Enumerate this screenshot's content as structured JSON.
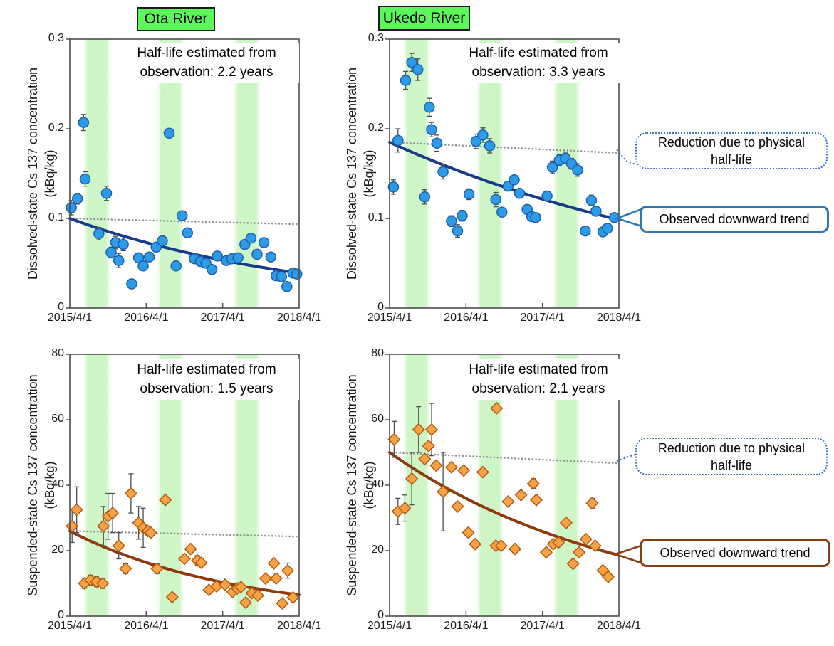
{
  "figure": {
    "description": "Cs 137 concentration trends in two rivers, dissolved and suspended states",
    "background": "#ffffff"
  },
  "callouts": [
    {
      "style": "dotted-blue",
      "line1": "Reduction due to physical",
      "line2": "half-life"
    },
    {
      "style": "solid-blue",
      "line1": "Observed downward trend"
    },
    {
      "style": "dotted-blue",
      "line1": "Reduction due to physical",
      "line2": "half-life"
    },
    {
      "style": "solid-brown",
      "line1": "Observed downward trend"
    }
  ],
  "chart_data": [
    {
      "id": "ota-dissolved",
      "type": "scatter",
      "river": "Ota River",
      "marker": "circle",
      "annotation": [
        "Half-life estimated from",
        "observation: 2.2 years"
      ],
      "half_life_years": 2.2,
      "y_axis": {
        "label": [
          "Dissolved-state Cs 137 concentration",
          "(kBq/kg)"
        ],
        "min": 0,
        "max": 0.3,
        "ticks": [
          "0",
          "0.1",
          "0.2",
          "0.3"
        ]
      },
      "x_axis": {
        "ticks": [
          "2015/4/1",
          "2016/4/1",
          "2017/4/1",
          "2018/4/1"
        ],
        "span_years": 3
      },
      "summer_bands_years": [
        [
          0.18,
          0.53
        ],
        [
          1.14,
          1.49
        ],
        [
          2.14,
          2.49
        ]
      ],
      "observed_trend": {
        "start": 0.1,
        "end": 0.039
      },
      "physical_halflife_line": {
        "start": 0.1,
        "end": 0.0935
      },
      "colors": {
        "marker_fill": "#2e9be8",
        "marker_stroke": "#1b5faa",
        "trend": "#183a8c",
        "physical": "#8f8f8f"
      },
      "points": [
        [
          0.02,
          0.112,
          0.008
        ],
        [
          0.1,
          0.122,
          0.006
        ],
        [
          0.18,
          0.207,
          0.009
        ],
        [
          0.2,
          0.144,
          0.008
        ],
        [
          0.38,
          0.083,
          0.007
        ],
        [
          0.48,
          0.128,
          0.008
        ],
        [
          0.54,
          0.062,
          0.006
        ],
        [
          0.6,
          0.073,
          0.007
        ],
        [
          0.64,
          0.053,
          0.008
        ],
        [
          0.7,
          0.071,
          0.007
        ],
        [
          0.81,
          0.027,
          0
        ],
        [
          0.9,
          0.056,
          0.004
        ],
        [
          0.96,
          0.047,
          0.005
        ],
        [
          1.04,
          0.057,
          0
        ],
        [
          1.13,
          0.068,
          0
        ],
        [
          1.21,
          0.075,
          0
        ],
        [
          1.3,
          0.195,
          0
        ],
        [
          1.39,
          0.047,
          0
        ],
        [
          1.47,
          0.103,
          0
        ],
        [
          1.54,
          0.084,
          0
        ],
        [
          1.63,
          0.055,
          0
        ],
        [
          1.71,
          0.052,
          0
        ],
        [
          1.78,
          0.05,
          0
        ],
        [
          1.86,
          0.043,
          0
        ],
        [
          1.93,
          0.058,
          0
        ],
        [
          2.05,
          0.053,
          0
        ],
        [
          2.12,
          0.055,
          0
        ],
        [
          2.2,
          0.056,
          0
        ],
        [
          2.29,
          0.071,
          0
        ],
        [
          2.37,
          0.078,
          0
        ],
        [
          2.45,
          0.06,
          0
        ],
        [
          2.54,
          0.073,
          0
        ],
        [
          2.63,
          0.057,
          0
        ],
        [
          2.7,
          0.036,
          0
        ],
        [
          2.77,
          0.035,
          0
        ],
        [
          2.84,
          0.024,
          0
        ],
        [
          2.92,
          0.039,
          0
        ],
        [
          2.97,
          0.038,
          0
        ]
      ]
    },
    {
      "id": "ukedo-dissolved",
      "type": "scatter",
      "river": "Ukedo River",
      "marker": "circle",
      "annotation": [
        "Half-life estimated from",
        "observation: 3.3 years"
      ],
      "half_life_years": 3.3,
      "y_axis": {
        "label": [
          "Dissolved-state Cs 137 concentration",
          "(kBq/kg)"
        ],
        "min": 0,
        "max": 0.3,
        "ticks": [
          "0",
          "0.1",
          "0.2",
          "0.3"
        ]
      },
      "x_axis": {
        "ticks": [
          "2015/4/1",
          "2016/4/1",
          "2017/4/1",
          "2018/4/1"
        ],
        "span_years": 3
      },
      "summer_bands_years": [
        [
          0.18,
          0.53
        ],
        [
          1.14,
          1.49
        ],
        [
          2.14,
          2.49
        ]
      ],
      "observed_trend": {
        "start": 0.185,
        "end": 0.0985
      },
      "physical_halflife_line": {
        "start": 0.185,
        "end": 0.173
      },
      "colors": {
        "marker_fill": "#2e9be8",
        "marker_stroke": "#1b5faa",
        "trend": "#183a8c",
        "physical": "#8f8f8f"
      },
      "points": [
        [
          0.05,
          0.135,
          0.008
        ],
        [
          0.11,
          0.187,
          0.013
        ],
        [
          0.21,
          0.254,
          0.01
        ],
        [
          0.29,
          0.274,
          0.01
        ],
        [
          0.37,
          0.266,
          0.012
        ],
        [
          0.46,
          0.124,
          0.008
        ],
        [
          0.52,
          0.224,
          0.01
        ],
        [
          0.55,
          0.199,
          0.008
        ],
        [
          0.62,
          0.184,
          0.009
        ],
        [
          0.7,
          0.152,
          0.008
        ],
        [
          0.81,
          0.097,
          0.006
        ],
        [
          0.89,
          0.086,
          0.007
        ],
        [
          0.95,
          0.103,
          0.006
        ],
        [
          1.04,
          0.127,
          0.006
        ],
        [
          1.13,
          0.186,
          0.008
        ],
        [
          1.22,
          0.193,
          0.008
        ],
        [
          1.31,
          0.181,
          0.008
        ],
        [
          1.39,
          0.121,
          0.008
        ],
        [
          1.47,
          0.107,
          0
        ],
        [
          1.55,
          0.136,
          0
        ],
        [
          1.63,
          0.143,
          0
        ],
        [
          1.7,
          0.128,
          0
        ],
        [
          1.8,
          0.11,
          0
        ],
        [
          1.86,
          0.102,
          0
        ],
        [
          1.91,
          0.101,
          0
        ],
        [
          2.06,
          0.125,
          0
        ],
        [
          2.13,
          0.157,
          0.007
        ],
        [
          2.22,
          0.165,
          0.006
        ],
        [
          2.3,
          0.167,
          0.006
        ],
        [
          2.38,
          0.161,
          0.006
        ],
        [
          2.46,
          0.154,
          0.007
        ],
        [
          2.56,
          0.086,
          0
        ],
        [
          2.64,
          0.12,
          0.006
        ],
        [
          2.7,
          0.108,
          0
        ],
        [
          2.79,
          0.085,
          0
        ],
        [
          2.85,
          0.089,
          0
        ],
        [
          2.94,
          0.101,
          0
        ]
      ]
    },
    {
      "id": "ota-suspended",
      "type": "scatter",
      "river": "Ota River",
      "marker": "diamond",
      "annotation": [
        "Half-life estimated from",
        "observation: 1.5 years"
      ],
      "half_life_years": 1.5,
      "y_axis": {
        "label": [
          "Suspended-state Cs 137 concentration",
          "(kBq/kg)"
        ],
        "min": 0,
        "max": 80,
        "ticks": [
          "0",
          "20",
          "40",
          "60",
          "80"
        ]
      },
      "x_axis": {
        "ticks": [
          "2015/4/1",
          "2016/4/1",
          "2017/4/1",
          "2018/4/1"
        ],
        "span_years": 3
      },
      "summer_bands_years": [
        [
          0.18,
          0.53
        ],
        [
          1.14,
          1.49
        ],
        [
          2.14,
          2.49
        ]
      ],
      "observed_trend": {
        "start": 26,
        "end": 6.5
      },
      "physical_halflife_line": {
        "start": 26,
        "end": 24.3
      },
      "colors": {
        "marker_fill": "#f7a345",
        "marker_stroke": "#b35a13",
        "trend": "#8e3b0c",
        "physical": "#8f8f8f"
      },
      "points": [
        [
          0.03,
          27.5,
          5
        ],
        [
          0.09,
          32.5,
          7
        ],
        [
          0.19,
          10,
          1.5
        ],
        [
          0.27,
          11,
          1.5
        ],
        [
          0.35,
          10.5,
          1.5
        ],
        [
          0.43,
          10,
          1.5
        ],
        [
          0.44,
          27.5,
          6
        ],
        [
          0.5,
          30.5,
          7
        ],
        [
          0.56,
          31.5,
          6
        ],
        [
          0.64,
          21.5,
          4
        ],
        [
          0.73,
          14.5,
          1.5
        ],
        [
          0.8,
          37.5,
          6
        ],
        [
          0.9,
          28.5,
          5
        ],
        [
          0.96,
          27,
          6
        ],
        [
          1.02,
          26,
          1.5
        ],
        [
          1.06,
          25.5,
          0
        ],
        [
          1.14,
          14.5,
          1.5
        ],
        [
          1.25,
          35.5,
          0
        ],
        [
          1.34,
          5.8,
          0
        ],
        [
          1.5,
          17.5,
          0
        ],
        [
          1.58,
          20.5,
          0
        ],
        [
          1.67,
          17,
          1.5
        ],
        [
          1.72,
          16.3,
          0
        ],
        [
          1.82,
          8,
          0
        ],
        [
          1.92,
          9.1,
          0
        ],
        [
          2.03,
          9.6,
          0
        ],
        [
          2.13,
          7.4,
          0
        ],
        [
          2.19,
          8.5,
          0
        ],
        [
          2.24,
          8.9,
          0
        ],
        [
          2.3,
          4.1,
          0
        ],
        [
          2.38,
          7,
          0
        ],
        [
          2.46,
          6.3,
          0
        ],
        [
          2.56,
          11.5,
          0
        ],
        [
          2.67,
          16.1,
          0
        ],
        [
          2.7,
          11.5,
          0
        ],
        [
          2.78,
          3.9,
          0
        ],
        [
          2.85,
          13.9,
          2.3
        ],
        [
          2.92,
          5.7,
          0
        ]
      ]
    },
    {
      "id": "ukedo-suspended",
      "type": "scatter",
      "river": "Ukedo River",
      "marker": "diamond",
      "annotation": [
        "Half-life estimated from",
        "observation: 2.1 years"
      ],
      "half_life_years": 2.1,
      "y_axis": {
        "label": [
          "Suspended-state Cs 137 concentration",
          "(kBq/kg)"
        ],
        "min": 0,
        "max": 80,
        "ticks": [
          "0",
          "20",
          "40",
          "60",
          "80"
        ]
      },
      "x_axis": {
        "ticks": [
          "2015/4/1",
          "2016/4/1",
          "2017/4/1",
          "2018/4/1"
        ],
        "span_years": 3
      },
      "summer_bands_years": [
        [
          0.18,
          0.53
        ],
        [
          1.14,
          1.49
        ],
        [
          2.14,
          2.49
        ]
      ],
      "observed_trend": {
        "start": 50,
        "end": 18.6
      },
      "physical_halflife_line": {
        "start": 50,
        "end": 46.7
      },
      "colors": {
        "marker_fill": "#f7a345",
        "marker_stroke": "#b35a13",
        "trend": "#8e3b0c",
        "physical": "#8f8f8f"
      },
      "points": [
        [
          0.06,
          54,
          5.5
        ],
        [
          0.11,
          32,
          4
        ],
        [
          0.2,
          33,
          4
        ],
        [
          0.29,
          42,
          8
        ],
        [
          0.38,
          57,
          7
        ],
        [
          0.46,
          48,
          0
        ],
        [
          0.51,
          52,
          0
        ],
        [
          0.55,
          57,
          8
        ],
        [
          0.61,
          46,
          0
        ],
        [
          0.7,
          38,
          12
        ],
        [
          0.81,
          45.5,
          0
        ],
        [
          0.89,
          33.5,
          0
        ],
        [
          0.97,
          44.5,
          0
        ],
        [
          1.03,
          25.5,
          0
        ],
        [
          1.12,
          22,
          0
        ],
        [
          1.22,
          44,
          0
        ],
        [
          1.39,
          21.5,
          0
        ],
        [
          1.4,
          63.5,
          0
        ],
        [
          1.46,
          21.5,
          0
        ],
        [
          1.55,
          35,
          0
        ],
        [
          1.64,
          20.5,
          0
        ],
        [
          1.72,
          37,
          0
        ],
        [
          1.88,
          40.5,
          1.5
        ],
        [
          1.92,
          35.5,
          0
        ],
        [
          2.05,
          19.5,
          0
        ],
        [
          2.14,
          22,
          0
        ],
        [
          2.21,
          22.5,
          0
        ],
        [
          2.31,
          28.5,
          0
        ],
        [
          2.4,
          16,
          0
        ],
        [
          2.48,
          19.5,
          0
        ],
        [
          2.57,
          23.5,
          0
        ],
        [
          2.65,
          34.5,
          1.5
        ],
        [
          2.69,
          21.5,
          0
        ],
        [
          2.79,
          14,
          0
        ],
        [
          2.86,
          12,
          0
        ]
      ]
    }
  ]
}
